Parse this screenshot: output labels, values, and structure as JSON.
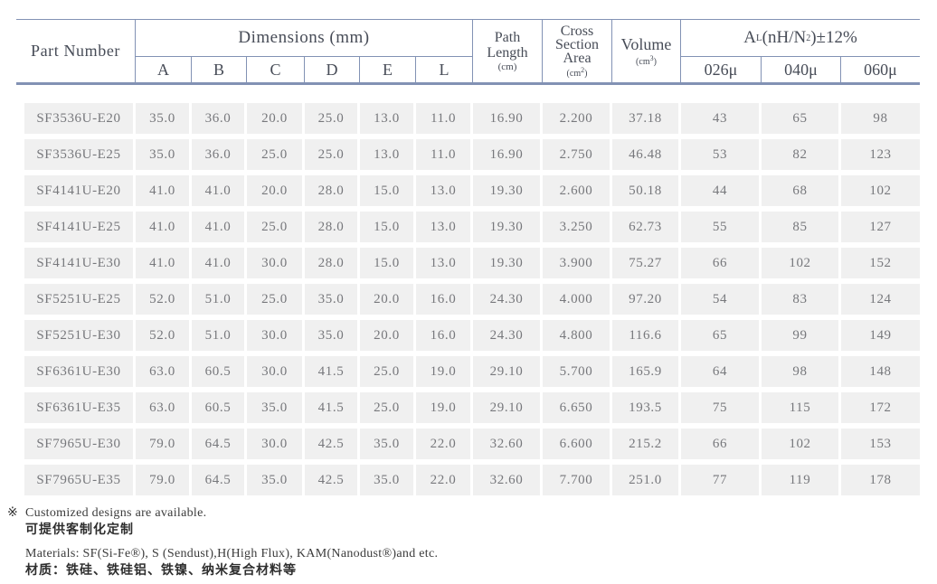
{
  "colors": {
    "table_line": "#8292b4",
    "row_band": "#f0f0f0",
    "header_text": "#474c57",
    "data_text": "#77787c"
  },
  "table": {
    "header": {
      "part_number": "Part Number",
      "dimensions": "Dimensions (mm)",
      "dim_cols": [
        "A",
        "B",
        "C",
        "D",
        "E",
        "L"
      ],
      "path_line1": "Path",
      "path_line2": "Length",
      "path_unit": "(cm)",
      "cross_line1": "Cross",
      "cross_line2": "Section",
      "cross_line3": "Area",
      "cross_unit_open": "(cm",
      "cross_unit_sup": "2",
      "cross_unit_close": ")",
      "volume": "Volume",
      "volume_unit_open": "(cm",
      "volume_unit_sup": "3",
      "volume_unit_close": ")",
      "al_a": "A",
      "al_sub": "L",
      "al_mid": "(nH/N",
      "al_sup": "2",
      "al_tail": ")±12%",
      "al_cols": [
        "026μ",
        "040μ",
        "060μ"
      ]
    },
    "rows": [
      {
        "part": "SF3536U-E20",
        "values": [
          "35.0",
          "36.0",
          "20.0",
          "25.0",
          "13.0",
          "11.0",
          "16.90",
          "2.200",
          "37.18",
          "43",
          "65",
          "98"
        ]
      },
      {
        "part": "SF3536U-E25",
        "values": [
          "35.0",
          "36.0",
          "25.0",
          "25.0",
          "13.0",
          "11.0",
          "16.90",
          "2.750",
          "46.48",
          "53",
          "82",
          "123"
        ]
      },
      {
        "part": "SF4141U-E20",
        "values": [
          "41.0",
          "41.0",
          "20.0",
          "28.0",
          "15.0",
          "13.0",
          "19.30",
          "2.600",
          "50.18",
          "44",
          "68",
          "102"
        ]
      },
      {
        "part": "SF4141U-E25",
        "values": [
          "41.0",
          "41.0",
          "25.0",
          "28.0",
          "15.0",
          "13.0",
          "19.30",
          "3.250",
          "62.73",
          "55",
          "85",
          "127"
        ]
      },
      {
        "part": "SF4141U-E30",
        "values": [
          "41.0",
          "41.0",
          "30.0",
          "28.0",
          "15.0",
          "13.0",
          "19.30",
          "3.900",
          "75.27",
          "66",
          "102",
          "152"
        ]
      },
      {
        "part": "SF5251U-E25",
        "values": [
          "52.0",
          "51.0",
          "25.0",
          "35.0",
          "20.0",
          "16.0",
          "24.30",
          "4.000",
          "97.20",
          "54",
          "83",
          "124"
        ]
      },
      {
        "part": "SF5251U-E30",
        "values": [
          "52.0",
          "51.0",
          "30.0",
          "35.0",
          "20.0",
          "16.0",
          "24.30",
          "4.800",
          "116.6",
          "65",
          "99",
          "149"
        ]
      },
      {
        "part": "SF6361U-E30",
        "values": [
          "63.0",
          "60.5",
          "30.0",
          "41.5",
          "25.0",
          "19.0",
          "29.10",
          "5.700",
          "165.9",
          "64",
          "98",
          "148"
        ]
      },
      {
        "part": "SF6361U-E35",
        "values": [
          "63.0",
          "60.5",
          "35.0",
          "41.5",
          "25.0",
          "19.0",
          "29.10",
          "6.650",
          "193.5",
          "75",
          "115",
          "172"
        ]
      },
      {
        "part": "SF7965U-E30",
        "values": [
          "79.0",
          "64.5",
          "30.0",
          "42.5",
          "35.0",
          "22.0",
          "32.60",
          "6.600",
          "215.2",
          "66",
          "102",
          "153"
        ]
      },
      {
        "part": "SF7965U-E35",
        "values": [
          "79.0",
          "64.5",
          "35.0",
          "42.5",
          "35.0",
          "22.0",
          "32.60",
          "7.700",
          "251.0",
          "77",
          "119",
          "178"
        ]
      }
    ]
  },
  "notes": {
    "mark": "※",
    "custom_en": "Customized designs are available.",
    "custom_cn": "可提供客制化定制",
    "materials_en": "Materials: SF(Si-Fe®), S (Sendust),H(High Flux), KAM(Nanodust®)and etc.",
    "materials_cn": "材质：铁硅、铁硅铝、铁镍、纳米复合材料等"
  }
}
